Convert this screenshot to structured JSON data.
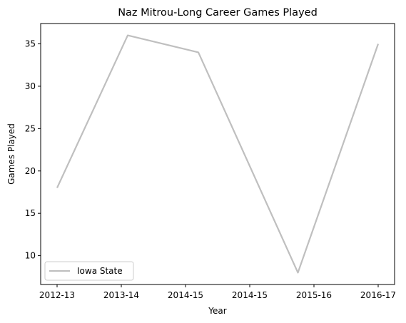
{
  "chart_data": {
    "type": "line",
    "title": "Naz Mitrou-Long Career Games Played",
    "xlabel": "Year",
    "ylabel": "Games Played",
    "x_ticks": [
      "2012-13",
      "2013-14",
      "2014-15",
      "2014-15",
      "2015-16",
      "2016-17"
    ],
    "x_range": [
      0,
      5
    ],
    "ylim": [
      6.6,
      37.4
    ],
    "y_ticks": [
      10,
      15,
      20,
      25,
      30,
      35
    ],
    "grid": false,
    "legend_position": "lower left",
    "series": [
      {
        "name": "Iowa State",
        "color": "#bfbfbf",
        "points": [
          {
            "x": 0,
            "y": 18
          },
          {
            "x": 1.1,
            "y": 36
          },
          {
            "x": 2.2,
            "y": 34
          },
          {
            "x": 3.75,
            "y": 8
          },
          {
            "x": 5,
            "y": 35
          }
        ]
      }
    ]
  }
}
